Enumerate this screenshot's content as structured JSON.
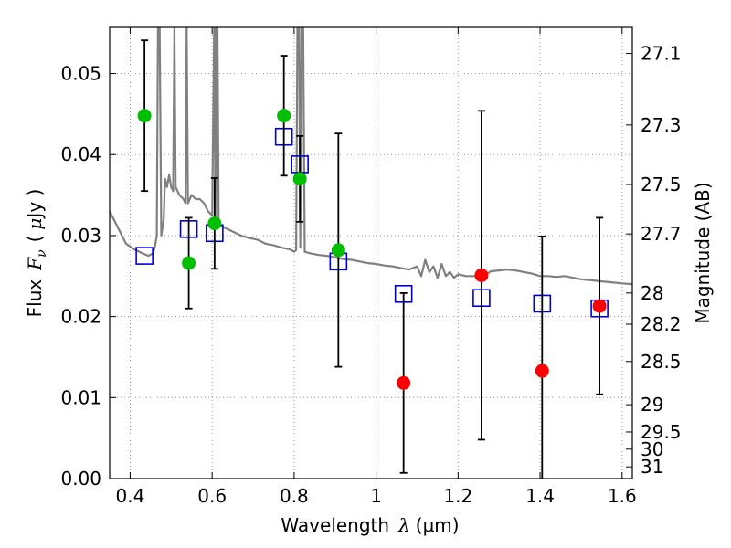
{
  "chart_data": {
    "type": "scatter",
    "title": "",
    "grid": true,
    "x_axis": {
      "label": "Wavelength",
      "label_math": "λ",
      "label_unit": "(μm)",
      "range": [
        0.35,
        1.625
      ],
      "ticks": [
        0.4,
        0.6,
        0.8,
        1.0,
        1.2,
        1.4,
        1.6
      ],
      "tick_labels": [
        "0.4",
        "0.6",
        "0.8",
        "1",
        "1.2",
        "1.4",
        "1.6"
      ]
    },
    "y_axis": {
      "label": "Flux",
      "label_math": "F",
      "label_math_sub": "ν",
      "label_unit_open": "(",
      "label_unit_mu": "μ",
      "label_unit_rest": "Jy )",
      "range": [
        0.0,
        0.0557
      ],
      "ticks": [
        0.0,
        0.01,
        0.02,
        0.03,
        0.04,
        0.05
      ],
      "tick_labels": [
        "0.00",
        "0.01",
        "0.02",
        "0.03",
        "0.04",
        "0.05"
      ]
    },
    "y2_axis": {
      "label": "Magnitude (AB)",
      "ticks": [
        27.1,
        27.3,
        27.5,
        27.7,
        28.0,
        28.2,
        28.5,
        29.0,
        29.5,
        30.0,
        31.0
      ],
      "tick_labels": [
        "27.1",
        "27.3",
        "27.5",
        "27.7",
        "28",
        "28.2",
        "28.5",
        "29",
        "29.5",
        "30",
        "31"
      ]
    },
    "series": [
      {
        "kind": "detections",
        "color": "#00bf00",
        "marker": "circle",
        "points": [
          {
            "x": 0.435,
            "y": 0.0448,
            "err": 0.0093
          },
          {
            "x": 0.543,
            "y": 0.0266,
            "err": 0.0056
          },
          {
            "x": 0.606,
            "y": 0.0315,
            "err": 0.0056
          },
          {
            "x": 0.775,
            "y": 0.0448,
            "err": 0.0074
          },
          {
            "x": 0.814,
            "y": 0.037,
            "err": 0.0053
          },
          {
            "x": 0.908,
            "y": 0.0282,
            "err": 0.0144
          }
        ]
      },
      {
        "kind": "non-detections",
        "color": "#ff0000",
        "marker": "circle",
        "points": [
          {
            "x": 1.067,
            "y": 0.0118,
            "err": 0.0111
          },
          {
            "x": 1.257,
            "y": 0.0251,
            "err": 0.0203
          },
          {
            "x": 1.405,
            "y": 0.0133,
            "err": 0.0166
          },
          {
            "x": 1.545,
            "y": 0.0213,
            "err": 0.0109
          }
        ]
      },
      {
        "kind": "model-photometry",
        "color": "#0000cc",
        "marker": "square-open",
        "points": [
          {
            "x": 0.435,
            "y": 0.0275
          },
          {
            "x": 0.543,
            "y": 0.0308
          },
          {
            "x": 0.606,
            "y": 0.0303
          },
          {
            "x": 0.775,
            "y": 0.0422
          },
          {
            "x": 0.814,
            "y": 0.0388
          },
          {
            "x": 0.908,
            "y": 0.0268
          },
          {
            "x": 1.067,
            "y": 0.0228
          },
          {
            "x": 1.257,
            "y": 0.0223
          },
          {
            "x": 1.405,
            "y": 0.0216
          },
          {
            "x": 1.545,
            "y": 0.021
          }
        ]
      },
      {
        "kind": "model-spectrum",
        "color": "#808080",
        "line": [
          [
            0.35,
            0.033
          ],
          [
            0.37,
            0.031
          ],
          [
            0.39,
            0.029
          ],
          [
            0.41,
            0.0283
          ],
          [
            0.43,
            0.0278
          ],
          [
            0.445,
            0.0275
          ],
          [
            0.455,
            0.0278
          ],
          [
            0.46,
            0.0285
          ],
          [
            0.465,
            0.03
          ],
          [
            0.468,
            0.0557
          ],
          [
            0.472,
            0.0557
          ],
          [
            0.476,
            0.03
          ],
          [
            0.482,
            0.032
          ],
          [
            0.485,
            0.037
          ],
          [
            0.49,
            0.036
          ],
          [
            0.495,
            0.0375
          ],
          [
            0.5,
            0.036
          ],
          [
            0.505,
            0.0355
          ],
          [
            0.508,
            0.0557
          ],
          [
            0.511,
            0.036
          ],
          [
            0.52,
            0.035
          ],
          [
            0.53,
            0.0345
          ],
          [
            0.535,
            0.034
          ],
          [
            0.538,
            0.0557
          ],
          [
            0.541,
            0.034
          ],
          [
            0.55,
            0.035
          ],
          [
            0.56,
            0.0345
          ],
          [
            0.57,
            0.0345
          ],
          [
            0.58,
            0.034
          ],
          [
            0.59,
            0.033
          ],
          [
            0.6,
            0.0325
          ],
          [
            0.605,
            0.0557
          ],
          [
            0.608,
            0.032
          ],
          [
            0.61,
            0.0557
          ],
          [
            0.613,
            0.0557
          ],
          [
            0.616,
            0.0315
          ],
          [
            0.63,
            0.031
          ],
          [
            0.65,
            0.0305
          ],
          [
            0.67,
            0.03
          ],
          [
            0.69,
            0.0297
          ],
          [
            0.71,
            0.0295
          ],
          [
            0.73,
            0.029
          ],
          [
            0.75,
            0.0288
          ],
          [
            0.77,
            0.0285
          ],
          [
            0.79,
            0.0283
          ],
          [
            0.8,
            0.028
          ],
          [
            0.805,
            0.0282
          ],
          [
            0.808,
            0.0557
          ],
          [
            0.812,
            0.0557
          ],
          [
            0.815,
            0.0285
          ],
          [
            0.818,
            0.0557
          ],
          [
            0.822,
            0.0557
          ],
          [
            0.826,
            0.028
          ],
          [
            0.84,
            0.0278
          ],
          [
            0.86,
            0.0276
          ],
          [
            0.88,
            0.0275
          ],
          [
            0.9,
            0.0273
          ],
          [
            0.92,
            0.0271
          ],
          [
            0.94,
            0.027
          ],
          [
            0.96,
            0.0268
          ],
          [
            0.98,
            0.0266
          ],
          [
            1.0,
            0.0265
          ],
          [
            1.02,
            0.0263
          ],
          [
            1.04,
            0.0262
          ],
          [
            1.06,
            0.026
          ],
          [
            1.08,
            0.0258
          ],
          [
            1.1,
            0.0262
          ],
          [
            1.11,
            0.025
          ],
          [
            1.12,
            0.027
          ],
          [
            1.13,
            0.0255
          ],
          [
            1.14,
            0.0262
          ],
          [
            1.15,
            0.0248
          ],
          [
            1.16,
            0.0265
          ],
          [
            1.17,
            0.025
          ],
          [
            1.18,
            0.0255
          ],
          [
            1.19,
            0.0248
          ],
          [
            1.2,
            0.0252
          ],
          [
            1.22,
            0.025
          ],
          [
            1.24,
            0.025
          ],
          [
            1.26,
            0.0249
          ],
          [
            1.28,
            0.0256
          ],
          [
            1.3,
            0.0257
          ],
          [
            1.32,
            0.0258
          ],
          [
            1.34,
            0.0257
          ],
          [
            1.36,
            0.0255
          ],
          [
            1.38,
            0.0253
          ],
          [
            1.4,
            0.025
          ],
          [
            1.42,
            0.025
          ],
          [
            1.44,
            0.0249
          ],
          [
            1.46,
            0.025
          ],
          [
            1.48,
            0.0248
          ],
          [
            1.5,
            0.0246
          ],
          [
            1.52,
            0.0245
          ],
          [
            1.54,
            0.0244
          ],
          [
            1.56,
            0.0243
          ],
          [
            1.58,
            0.0242
          ],
          [
            1.6,
            0.0241
          ],
          [
            1.625,
            0.024
          ]
        ]
      }
    ]
  }
}
